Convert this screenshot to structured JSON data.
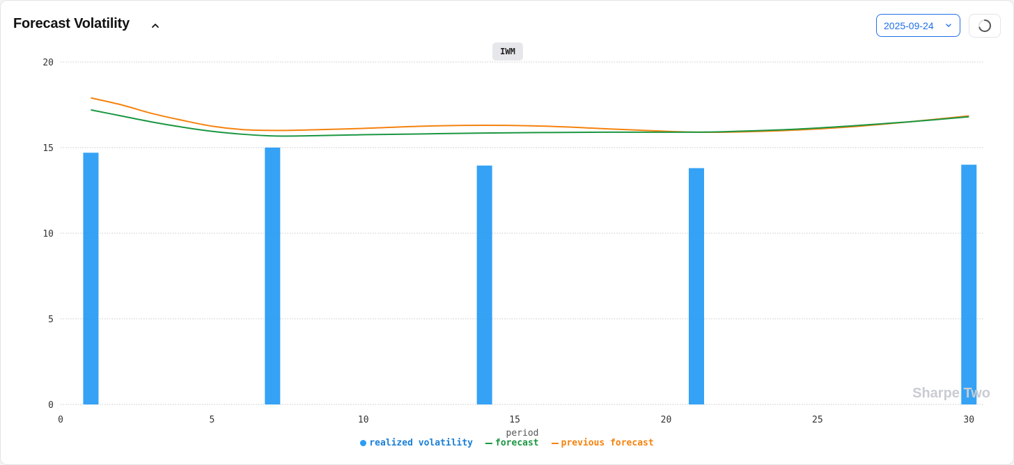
{
  "header": {
    "title": "Forecast Volatility",
    "date_value": "2025-09-24"
  },
  "icons": {
    "collapse": "chevron-up-icon",
    "date_dropdown": "chevron-down-icon",
    "refresh": "loading-spinner-icon"
  },
  "colors": {
    "realized": "#2a9df4",
    "forecast": "#1a9641",
    "previous_forecast": "#f5820d",
    "accent": "#1e6fe8"
  },
  "ticker": "IWM",
  "watermark": "Sharpe Two",
  "chart_data": {
    "type": "bar+line",
    "xlabel": "period",
    "ylabel": "",
    "xlim": [
      0,
      30.5
    ],
    "ylim": [
      0,
      20
    ],
    "x_ticks": [
      0,
      5,
      10,
      15,
      20,
      25,
      30
    ],
    "y_ticks": [
      0,
      5,
      10,
      15,
      20
    ],
    "grid": "horizontal",
    "legend_position": "bottom-center",
    "bars": {
      "name": "realized volatility",
      "x": [
        1,
        7,
        14,
        21,
        30
      ],
      "values": [
        14.7,
        15.0,
        13.95,
        13.8,
        14.0
      ]
    },
    "series": [
      {
        "name": "forecast",
        "x": [
          1,
          2,
          3,
          4,
          5,
          6,
          7,
          8,
          10,
          12,
          14,
          16,
          18,
          20,
          21,
          22,
          24,
          26,
          28,
          30
        ],
        "values": [
          17.2,
          16.85,
          16.5,
          16.2,
          15.95,
          15.78,
          15.68,
          15.68,
          15.75,
          15.8,
          15.85,
          15.88,
          15.9,
          15.9,
          15.9,
          15.93,
          16.05,
          16.25,
          16.5,
          16.8
        ]
      },
      {
        "name": "previous forecast",
        "x": [
          1,
          2,
          3,
          4,
          5,
          6,
          7,
          8,
          10,
          12,
          14,
          16,
          18,
          20,
          21,
          22,
          24,
          26,
          28,
          30
        ],
        "values": [
          17.9,
          17.5,
          17.0,
          16.6,
          16.25,
          16.05,
          16.0,
          16.02,
          16.12,
          16.25,
          16.3,
          16.25,
          16.1,
          15.95,
          15.9,
          15.9,
          16.0,
          16.2,
          16.5,
          16.85
        ]
      }
    ]
  }
}
